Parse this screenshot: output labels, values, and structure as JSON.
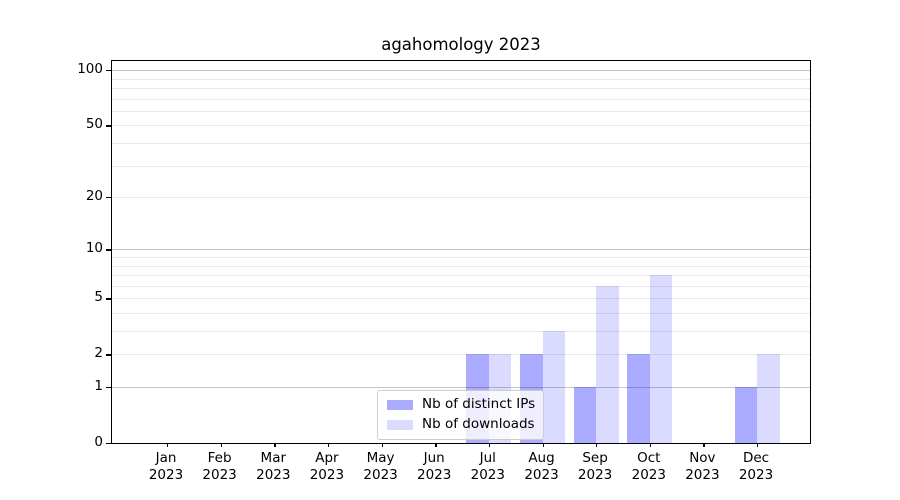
{
  "title": "agahomology 2023",
  "chart_data": {
    "type": "bar",
    "title": "agahomology 2023",
    "x_categories": [
      "Jan",
      "Feb",
      "Mar",
      "Apr",
      "May",
      "Jun",
      "Jul",
      "Aug",
      "Sep",
      "Oct",
      "Nov",
      "Dec"
    ],
    "x_year": "2023",
    "series": [
      {
        "name": "Nb of distinct IPs",
        "color": "rgba(0,0,255,0.33)",
        "values": [
          0,
          0,
          0,
          0,
          0,
          0,
          2,
          2,
          1,
          2,
          0,
          1
        ]
      },
      {
        "name": "Nb of downloads",
        "color": "rgba(0,0,255,0.14)",
        "values": [
          0,
          0,
          0,
          0,
          0,
          0,
          2,
          3,
          6,
          7,
          0,
          2
        ]
      }
    ],
    "yscale": "log1p",
    "ylim": [
      0,
      112
    ],
    "yticks": [
      0,
      1,
      2,
      5,
      10,
      20,
      50,
      100
    ],
    "grid_values": [
      1,
      2,
      3,
      4,
      5,
      6,
      7,
      8,
      9,
      10,
      20,
      30,
      40,
      50,
      60,
      70,
      80,
      90,
      100
    ],
    "major_grid_values": [
      1,
      10,
      100
    ],
    "grid": true,
    "legend_position": "lower-center",
    "colors": {
      "bar_ips": "rgba(0,0,255,0.33)",
      "bar_downloads": "rgba(0,0,255,0.14)",
      "grid_minor": "#e8e8e8",
      "grid_major": "#c6c6c6",
      "axis": "#000000",
      "legend_border": "#cccccc"
    }
  },
  "legend": {
    "items": [
      {
        "label": "Nb of distinct IPs"
      },
      {
        "label": "Nb of downloads"
      }
    ]
  }
}
